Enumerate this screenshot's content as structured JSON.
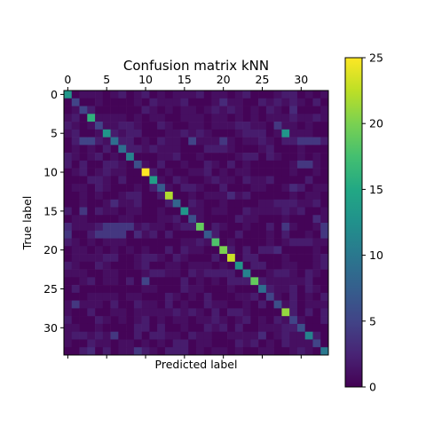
{
  "chart_data": {
    "type": "heatmap",
    "title": "Confusion matrix kNN",
    "xlabel": "Predicted label",
    "ylabel": "True label",
    "n_classes": 34,
    "x_ticks": [
      0,
      5,
      10,
      15,
      20,
      25,
      30
    ],
    "y_ticks": [
      0,
      5,
      10,
      15,
      20,
      25,
      30
    ],
    "colormap": "viridis",
    "colorbar": {
      "min": 0,
      "max": 25,
      "ticks": [
        0,
        5,
        10,
        15,
        20,
        25
      ]
    },
    "diagonal": [
      13,
      5,
      5,
      16,
      5,
      13,
      9,
      9,
      11,
      6,
      25,
      14,
      7,
      22,
      8,
      13,
      6,
      19,
      7,
      18,
      20,
      23,
      13,
      11,
      19,
      9,
      5,
      6,
      21,
      5,
      6,
      11,
      5,
      10
    ],
    "off_diagonal": [
      [
        5,
        28,
        13
      ],
      [
        6,
        2,
        5
      ],
      [
        6,
        3,
        5
      ],
      [
        6,
        16,
        5
      ],
      [
        6,
        20,
        4
      ],
      [
        6,
        30,
        4
      ],
      [
        6,
        31,
        4
      ],
      [
        6,
        32,
        4
      ],
      [
        1,
        20,
        3
      ],
      [
        4,
        27,
        4
      ],
      [
        9,
        30,
        4
      ],
      [
        9,
        31,
        4
      ],
      [
        17,
        0,
        3
      ],
      [
        17,
        5,
        4
      ],
      [
        17,
        6,
        4
      ],
      [
        17,
        7,
        4
      ],
      [
        17,
        8,
        4
      ],
      [
        17,
        28,
        4
      ],
      [
        17,
        33,
        4
      ],
      [
        18,
        0,
        4
      ],
      [
        18,
        4,
        4
      ],
      [
        18,
        5,
        4
      ],
      [
        18,
        6,
        4
      ],
      [
        18,
        7,
        4
      ],
      [
        18,
        9,
        3
      ],
      [
        18,
        33,
        4
      ],
      [
        15,
        2,
        4
      ],
      [
        14,
        6,
        3
      ],
      [
        13,
        21,
        3
      ],
      [
        24,
        10,
        5
      ],
      [
        31,
        6,
        4
      ],
      [
        33,
        3,
        3
      ],
      [
        33,
        9,
        4
      ],
      [
        2,
        29,
        3
      ],
      [
        12,
        29,
        3
      ],
      [
        16,
        32,
        3
      ],
      [
        20,
        27,
        3
      ],
      [
        31,
        25,
        3
      ],
      [
        27,
        1,
        4
      ]
    ],
    "background_level": 1
  }
}
